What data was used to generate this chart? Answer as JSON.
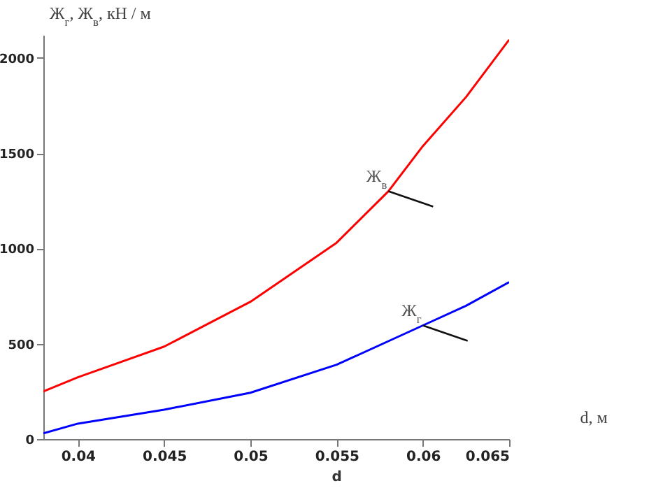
{
  "chart_data": {
    "type": "line",
    "ylabel": "Ж$_{г}$, Ж$_{в}$, кН / м",
    "xlabel": "d, м",
    "xlim": [
      0.038,
      0.065
    ],
    "xticks": [
      0.04,
      0.045,
      0.05,
      0.055,
      0.06,
      0.065
    ],
    "ylim": [
      0,
      2120
    ],
    "yticks": [
      0,
      500,
      1000,
      1500,
      2000
    ],
    "grid": false,
    "marker": "none",
    "line_style": "solid",
    "series": [
      {
        "color": "#ff0000",
        "x": [
          0.038,
          0.04,
          0.045,
          0.05,
          0.055,
          0.058,
          0.06,
          0.0625,
          0.065
        ],
        "values": [
          250,
          324,
          485,
          720,
          1030,
          1300,
          1537,
          1794,
          2095
        ]
      },
      {
        "color": "#0000ff",
        "x": [
          0.038,
          0.04,
          0.045,
          0.05,
          0.055,
          0.06,
          0.0625,
          0.065
        ],
        "values": [
          30,
          81,
          154,
          243,
          390,
          596,
          699,
          823
        ]
      }
    ],
    "annotations": [
      {
        "text": "Ж$_{в}$",
        "x": 0.058,
        "y": 1300
      },
      {
        "text": "Ж$_{г}$",
        "x": 0.06,
        "y": 596
      },
      "d"
    ]
  }
}
